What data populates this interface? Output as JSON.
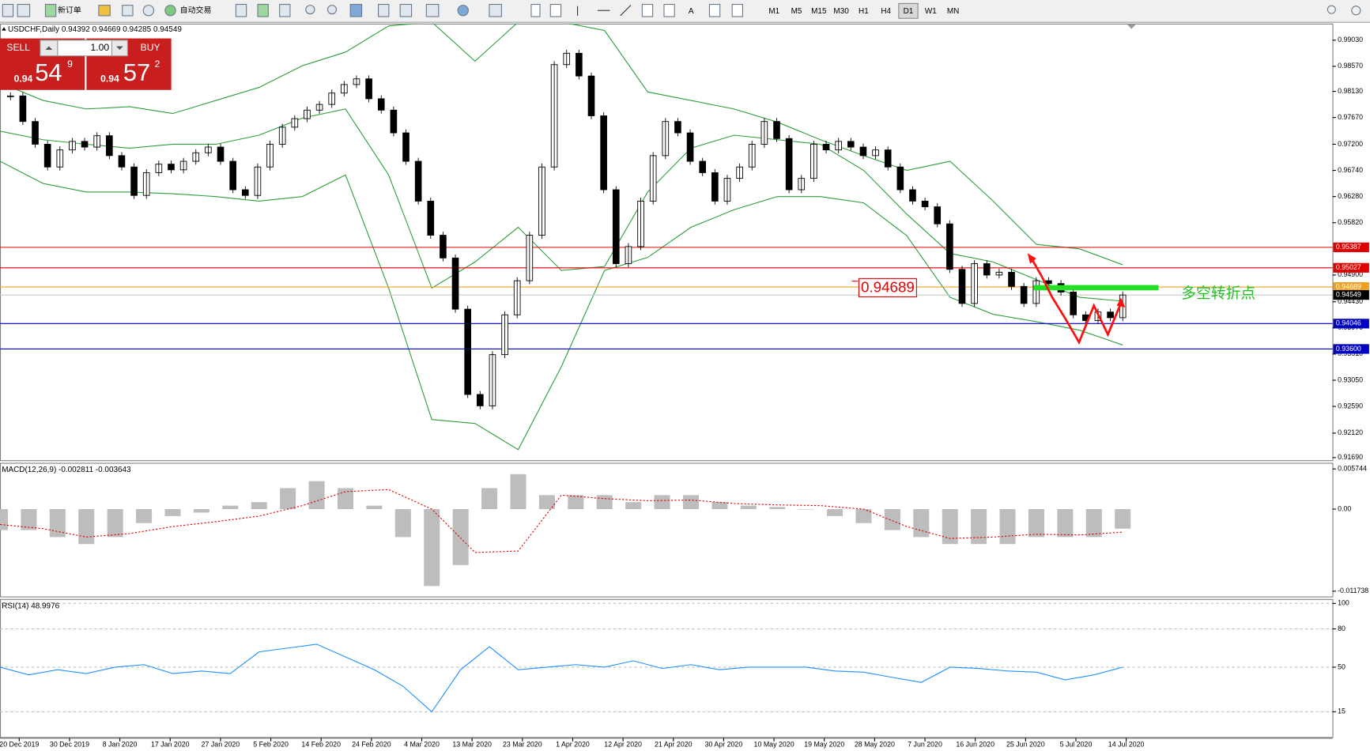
{
  "toolbar": {
    "buttons": [
      "新订单",
      "自动交易"
    ],
    "timeframes": [
      "M1",
      "M5",
      "M15",
      "M30",
      "H1",
      "H4",
      "D1",
      "W1",
      "MN"
    ],
    "active_timeframe": "D1"
  },
  "trade_panel": {
    "sell": "SELL",
    "buy": "BUY",
    "lot": "1.00",
    "bid_big": "0.94",
    "bid_pips": "54",
    "bid_frac": "9",
    "ask_big": "0.94",
    "ask_pips": "57",
    "ask_frac": "2"
  },
  "chart_data": [
    {
      "type": "candlestick",
      "title": "USDCHF,Daily  0.94392 0.94669 0.94285 0.94549",
      "date_labels": [
        "20 Dec 2019",
        "30 Dec 2019",
        "8 Jan 2020",
        "17 Jan 2020",
        "27 Jan 2020",
        "5 Feb 2020",
        "14 Feb 2020",
        "24 Feb 2020",
        "4 Mar 2020",
        "13 Mar 2020",
        "23 Mar 2020",
        "1 Apr 2020",
        "12 Apr 2020",
        "21 Apr 2020",
        "30 Apr 2020",
        "10 May 2020",
        "19 May 2020",
        "28 May 2020",
        "7 Jun 2020",
        "16 Jun 2020",
        "25 Jun 2020",
        "5 Jul 2020",
        "14 Jul 2020"
      ],
      "closes": [
        0.9805,
        0.976,
        0.972,
        0.968,
        0.971,
        0.9725,
        0.9715,
        0.9735,
        0.97,
        0.968,
        0.963,
        0.967,
        0.9685,
        0.9675,
        0.969,
        0.9705,
        0.9715,
        0.969,
        0.964,
        0.963,
        0.968,
        0.972,
        0.975,
        0.9765,
        0.978,
        0.979,
        0.981,
        0.9825,
        0.9835,
        0.98,
        0.978,
        0.974,
        0.969,
        0.962,
        0.956,
        0.952,
        0.943,
        0.928,
        0.926,
        0.935,
        0.942,
        0.948,
        0.956,
        0.968,
        0.986,
        0.988,
        0.984,
        0.977,
        0.964,
        0.951,
        0.954,
        0.962,
        0.97,
        0.976,
        0.974,
        0.969,
        0.967,
        0.962,
        0.966,
        0.968,
        0.972,
        0.976,
        0.973,
        0.964,
        0.966,
        0.972,
        0.971,
        0.9725,
        0.9715,
        0.97,
        0.971,
        0.968,
        0.964,
        0.962,
        0.961,
        0.958,
        0.95,
        0.944,
        0.951,
        0.949,
        0.9495,
        0.947,
        0.944,
        0.948,
        0.9475,
        0.946,
        0.942,
        0.941,
        0.9425,
        0.9415,
        0.94549
      ],
      "bollinger": {
        "color": "#2e9e3e",
        "upper": [
          0.9828,
          0.9797,
          0.9782,
          0.9786,
          0.9774,
          0.9797,
          0.982,
          0.9858,
          0.9882,
          0.9928,
          0.9935,
          0.9866,
          0.9935,
          0.9935,
          0.992,
          0.9812,
          0.9797,
          0.9782,
          0.9759,
          0.9728,
          0.97,
          0.9674,
          0.969,
          0.962,
          0.9544,
          0.9536,
          0.9508
        ],
        "middle": [
          0.9743,
          0.9728,
          0.972,
          0.9713,
          0.972,
          0.972,
          0.9736,
          0.9766,
          0.9782,
          0.9666,
          0.9467,
          0.9513,
          0.9574,
          0.9498,
          0.9505,
          0.9636,
          0.9713,
          0.9736,
          0.9728,
          0.972,
          0.9674,
          0.9597,
          0.9528,
          0.9513,
          0.9482,
          0.9451,
          0.9444
        ],
        "lower": [
          0.969,
          0.9651,
          0.9636,
          0.9636,
          0.9633,
          0.9628,
          0.962,
          0.9628,
          0.9666,
          0.9467,
          0.9236,
          0.9229,
          0.9183,
          0.9329,
          0.9498,
          0.9521,
          0.9574,
          0.9605,
          0.9628,
          0.9628,
          0.9617,
          0.9559,
          0.9451,
          0.9421,
          0.9408,
          0.9393,
          0.9367
        ]
      },
      "ylim": [
        0.9169,
        0.9903
      ],
      "yticks": [
        {
          "value": 0.9903,
          "label": "0.99030"
        },
        {
          "value": 0.9857,
          "label": "0.98570"
        },
        {
          "value": 0.9813,
          "label": "0.98130"
        },
        {
          "value": 0.9767,
          "label": "0.97670"
        },
        {
          "value": 0.972,
          "label": "0.97200"
        },
        {
          "value": 0.9674,
          "label": "0.96740"
        },
        {
          "value": 0.9628,
          "label": "0.96280"
        },
        {
          "value": 0.9582,
          "label": "0.95820"
        },
        {
          "value": 0.949,
          "label": "0.94900"
        },
        {
          "value": 0.9443,
          "label": "0.94430"
        },
        {
          "value": 0.9397,
          "label": "0.93970"
        },
        {
          "value": 0.9351,
          "label": "0.93510"
        },
        {
          "value": 0.9305,
          "label": "0.93050"
        },
        {
          "value": 0.9259,
          "label": "0.92590"
        },
        {
          "value": 0.9212,
          "label": "0.92120"
        },
        {
          "value": 0.9169,
          "label": "0.91690"
        }
      ],
      "levels": [
        {
          "value": 0.95387,
          "color": "#e00000",
          "box_color": "#e00000"
        },
        {
          "value": 0.95027,
          "color": "#e00000",
          "box_color": "#e00000"
        },
        {
          "value": 0.94689,
          "color": "#f0a020",
          "box_color": "#f0a020"
        },
        {
          "value": 0.94549,
          "color": "#c8c8c8",
          "box_color": "#000000"
        },
        {
          "value": 0.94046,
          "color": "#0000c0",
          "box_color": "#0000c0"
        },
        {
          "value": 0.936,
          "label": "0.93600",
          "color": "#0000c0",
          "box_color": "#0000c0"
        }
      ],
      "annotations": {
        "price_box": 0.94689,
        "note": "多空转折点"
      }
    },
    {
      "type": "macd",
      "title": "MACD(12,26,9) -0.002811 -0.003643",
      "histogram": [
        -0.003,
        -0.003,
        -0.004,
        -0.005,
        -0.004,
        -0.002,
        -0.001,
        -0.0005,
        0.0005,
        0.001,
        0.003,
        0.004,
        0.003,
        0.0005,
        -0.004,
        -0.011,
        -0.008,
        0.003,
        0.005,
        0.002,
        0.002,
        0.002,
        0.001,
        0.002,
        0.002,
        0.001,
        0.0005,
        0.0003,
        0.0,
        -0.001,
        -0.002,
        -0.003,
        -0.004,
        -0.005,
        -0.005,
        -0.005,
        -0.004,
        -0.004,
        -0.004,
        -0.0028
      ],
      "hist_color": "#bdbdbd",
      "signal": [
        -0.0022,
        -0.0028,
        -0.004,
        -0.0035,
        -0.0025,
        -0.0018,
        -0.001,
        0.0005,
        0.0025,
        0.0028,
        0.0,
        -0.0062,
        -0.006,
        0.002,
        0.0015,
        0.0012,
        0.0013,
        0.0008,
        0.0006,
        0.0005,
        0.0,
        -0.0025,
        -0.0042,
        -0.004,
        -0.0036,
        -0.0037,
        -0.0033
      ],
      "signal_color": "#e00000",
      "ylim": [
        -0.011738,
        0.005744
      ],
      "yticks": [
        0.005744,
        {
          "value": 0,
          "label": "0.00"
        },
        -0.011738
      ]
    },
    {
      "type": "line",
      "title": "RSI(14) 48.9976",
      "values": [
        50,
        44,
        48,
        45,
        50,
        52,
        45,
        47,
        45,
        62,
        65,
        68,
        58,
        48,
        35,
        15,
        48,
        66,
        48,
        50,
        52,
        50,
        55,
        49,
        52,
        48,
        50,
        50,
        50,
        47,
        46,
        42,
        38,
        50,
        49,
        47,
        46,
        40,
        44,
        50
      ],
      "color": "#1e90ff",
      "ylim": [
        0,
        100
      ],
      "yticks": [
        100,
        80,
        50,
        15
      ],
      "grid": true
    }
  ]
}
